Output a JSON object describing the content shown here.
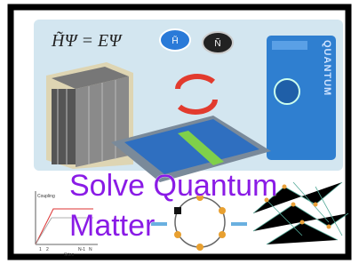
{
  "equation": "H̃Ψ = EΨ",
  "buttons": [
    "H̃",
    "Ñ"
  ],
  "device_label": "QUANTUM",
  "title_lines": [
    "Solve Quantum",
    "Matter"
  ],
  "plot": {
    "y_label": "Coupling",
    "x_label": "Sites",
    "x_tick_labels": [
      "1",
      "2",
      "N-1",
      "N"
    ]
  }
}
